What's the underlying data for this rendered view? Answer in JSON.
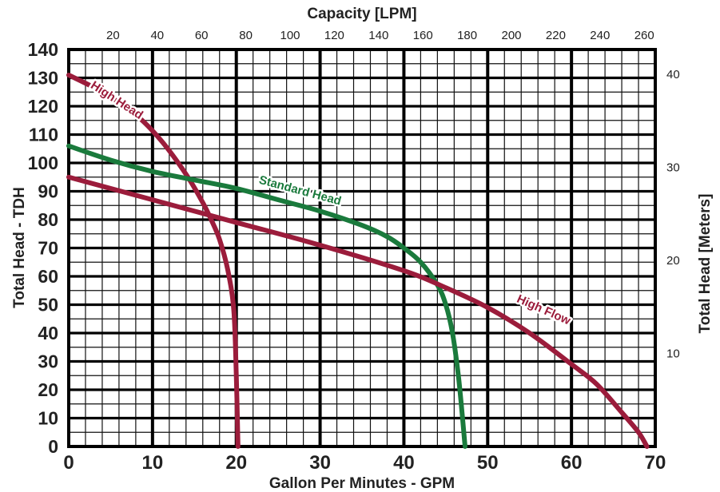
{
  "chart_data": {
    "type": "line",
    "title": "",
    "xlabel": "Gallon Per Minutes - GPM",
    "ylabel": "Total Head - TDH",
    "x2label": "Capacity [LPM]",
    "y2label": "Total Head [Meters]",
    "xlim": [
      0,
      70
    ],
    "ylim": [
      0,
      140
    ],
    "x_ticks": [
      0,
      10,
      20,
      30,
      40,
      50,
      60,
      70
    ],
    "y_ticks": [
      0,
      10,
      20,
      30,
      40,
      50,
      60,
      70,
      80,
      90,
      100,
      110,
      120,
      130,
      140
    ],
    "x2_ticks": [
      20,
      40,
      60,
      80,
      100,
      120,
      140,
      160,
      180,
      200,
      220,
      240,
      260
    ],
    "y2_ticks": [
      10,
      20,
      30,
      40
    ],
    "grid": true,
    "series": [
      {
        "name": "High Head",
        "color": "#9b1c3b",
        "x": [
          0,
          4,
          8,
          11,
          14,
          16,
          17,
          18,
          19,
          19.7,
          20,
          20.2
        ],
        "y": [
          131,
          125,
          117,
          108,
          96,
          86,
          80,
          73,
          62,
          48,
          25,
          0
        ]
      },
      {
        "name": "Standard Head",
        "color": "#1a7a3c",
        "x": [
          0,
          5,
          10,
          15,
          20,
          25,
          30,
          35,
          38,
          40,
          42,
          44,
          45,
          45.8,
          46.5,
          47,
          47.3
        ],
        "y": [
          106,
          101,
          97,
          94,
          91,
          87,
          83,
          78,
          74,
          70,
          65,
          57,
          50,
          40,
          25,
          10,
          0
        ]
      },
      {
        "name": "High Flow",
        "color": "#9b1c3b",
        "x": [
          0,
          10,
          20,
          30,
          40,
          45,
          50,
          55,
          60,
          63,
          66,
          68,
          69
        ],
        "y": [
          95,
          87,
          79,
          71,
          62,
          56,
          49,
          40,
          29,
          22,
          12,
          5,
          0
        ]
      }
    ]
  }
}
